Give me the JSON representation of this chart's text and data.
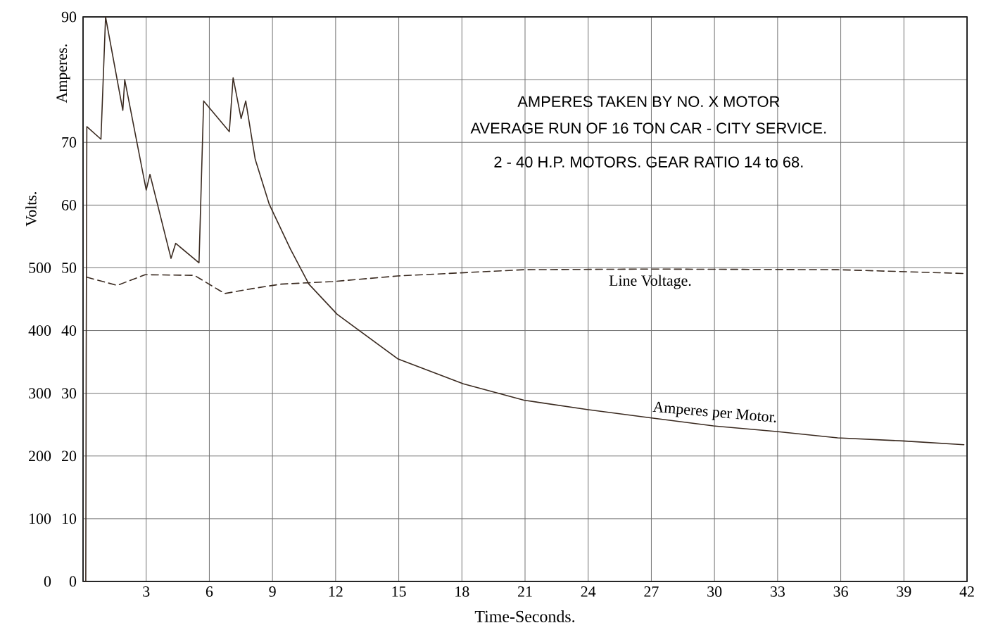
{
  "chart_data": {
    "type": "line",
    "title": "AMPERES TAKEN BY NO. X MOTOR",
    "subtitle": "AVERAGE RUN OF 16 TON CAR - CITY SERVICE.",
    "annotations": [
      "2 - 40 H.P. MOTORS.   GEAR RATIO 14 to 68."
    ],
    "xlabel": "Time-Seconds.",
    "ylabel": "Amperes.",
    "y2label": "Volts.",
    "xlim": [
      0,
      42
    ],
    "xticks": [
      3,
      6,
      9,
      12,
      15,
      18,
      21,
      24,
      27,
      30,
      33,
      36,
      39,
      42
    ],
    "ylim": [
      0,
      90
    ],
    "yticks": [
      0,
      10,
      20,
      30,
      40,
      50,
      60,
      70,
      {
        "value": 80,
        "label": null
      },
      90
    ],
    "y2lim": [
      0,
      900
    ],
    "y2ticks": [
      0,
      100,
      200,
      300,
      400,
      500
    ],
    "grid": true,
    "series": [
      {
        "name": "Amperes per Motor.",
        "color": "#3a2a20",
        "line_style": "solid",
        "x": [
          0.13,
          0.15,
          0.18,
          0.85,
          1.07,
          1.89,
          1.98,
          3.0,
          3.18,
          4.18,
          4.4,
          5.51,
          5.73,
          6.95,
          7.13,
          7.51,
          7.73,
          8.18,
          8.85,
          9.85,
          10.73,
          12.07,
          14.95,
          18.07,
          20.95,
          23.95,
          26.95,
          29.95,
          32.95,
          35.85,
          38.95,
          41.85
        ],
        "values": [
          0,
          35.5,
          72.5,
          70.5,
          90,
          75.1,
          80,
          62.4,
          64.9,
          51.5,
          53.9,
          50.8,
          76.6,
          71.7,
          80.3,
          73.8,
          76.6,
          67.3,
          60.1,
          53,
          47.4,
          42.6,
          35.5,
          31.5,
          28.9,
          27.4,
          26.1,
          24.8,
          23.9,
          22.9,
          22.4,
          21.8
        ]
      },
      {
        "name": "Line Voltage.",
        "color": "#3a2a20",
        "line_style": "dashed",
        "axis": "y2",
        "x": [
          0.18,
          1.62,
          2.95,
          5.29,
          6.73,
          8.07,
          9.4,
          11.85,
          14.95,
          20.95,
          26.95,
          35.85,
          41.85
        ],
        "values": [
          485,
          472,
          489,
          488,
          459,
          467,
          474,
          478,
          487,
          497,
          498,
          497,
          491
        ]
      }
    ]
  }
}
